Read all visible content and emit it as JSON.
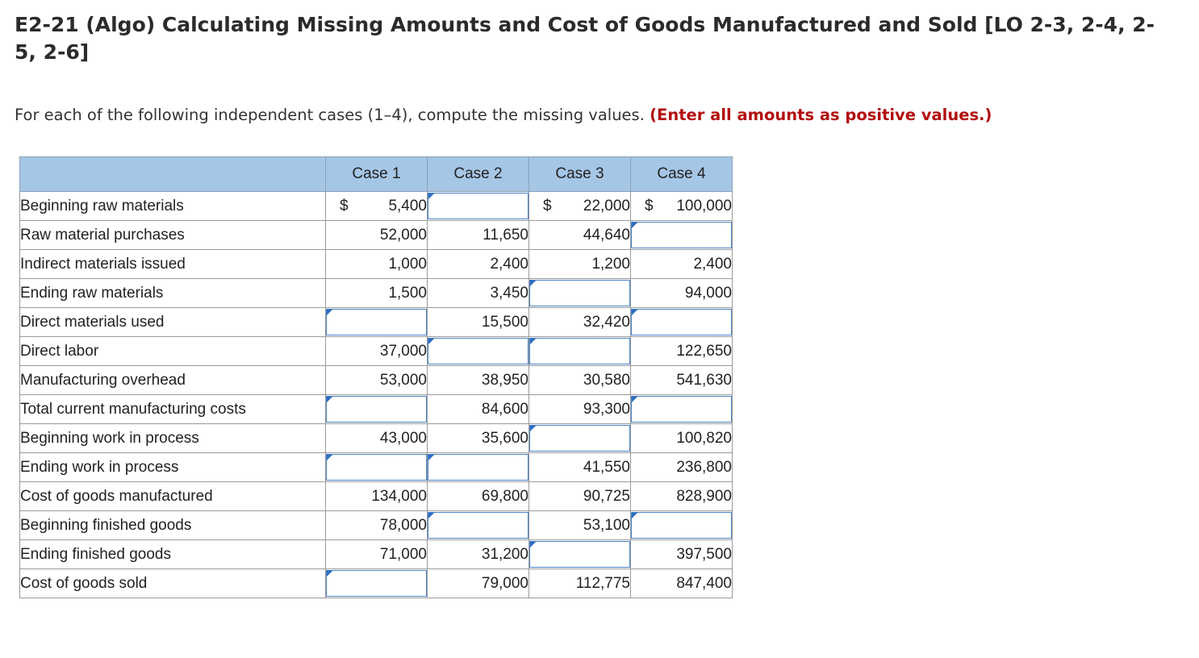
{
  "title": "E2-21 (Algo) Calculating Missing Amounts and Cost of Goods Manufactured and Sold [LO 2-3, 2-4, 2-5, 2-6]",
  "instructions": {
    "text": "For each of the following independent cases (1–4), compute the missing values.",
    "note": "(Enter all amounts as positive values.)"
  },
  "table": {
    "columns": [
      "Case 1",
      "Case 2",
      "Case 3",
      "Case 4"
    ],
    "rows": [
      {
        "label": "Beginning raw materials",
        "cells": [
          {
            "value": "5,400",
            "dollar": "$"
          },
          {
            "input": true,
            "value": ""
          },
          {
            "value": "22,000",
            "dollar": "$"
          },
          {
            "value": "100,000",
            "dollar": "$"
          }
        ]
      },
      {
        "label": "Raw material purchases",
        "cells": [
          {
            "value": "52,000"
          },
          {
            "value": "11,650"
          },
          {
            "value": "44,640"
          },
          {
            "input": true,
            "value": ""
          }
        ]
      },
      {
        "label": "Indirect materials issued",
        "cells": [
          {
            "value": "1,000"
          },
          {
            "value": "2,400"
          },
          {
            "value": "1,200"
          },
          {
            "value": "2,400"
          }
        ]
      },
      {
        "label": "Ending raw materials",
        "cells": [
          {
            "value": "1,500"
          },
          {
            "value": "3,450"
          },
          {
            "input": true,
            "value": ""
          },
          {
            "value": "94,000"
          }
        ]
      },
      {
        "label": "Direct materials used",
        "cells": [
          {
            "input": true,
            "value": ""
          },
          {
            "value": "15,500"
          },
          {
            "value": "32,420"
          },
          {
            "input": true,
            "value": ""
          }
        ]
      },
      {
        "label": "Direct labor",
        "cells": [
          {
            "value": "37,000"
          },
          {
            "input": true,
            "value": ""
          },
          {
            "input": true,
            "value": ""
          },
          {
            "value": "122,650"
          }
        ]
      },
      {
        "label": "Manufacturing overhead",
        "cells": [
          {
            "value": "53,000"
          },
          {
            "value": "38,950"
          },
          {
            "value": "30,580"
          },
          {
            "value": "541,630"
          }
        ]
      },
      {
        "label": "Total current manufacturing costs",
        "cells": [
          {
            "input": true,
            "value": ""
          },
          {
            "value": "84,600"
          },
          {
            "value": "93,300"
          },
          {
            "input": true,
            "value": ""
          }
        ]
      },
      {
        "label": "Beginning work in process",
        "cells": [
          {
            "value": "43,000"
          },
          {
            "value": "35,600"
          },
          {
            "input": true,
            "value": ""
          },
          {
            "value": "100,820"
          }
        ]
      },
      {
        "label": "Ending work in process",
        "cells": [
          {
            "input": true,
            "value": ""
          },
          {
            "input": true,
            "value": ""
          },
          {
            "value": "41,550"
          },
          {
            "value": "236,800"
          }
        ]
      },
      {
        "label": "Cost of goods manufactured",
        "cells": [
          {
            "value": "134,000"
          },
          {
            "value": "69,800"
          },
          {
            "value": "90,725"
          },
          {
            "value": "828,900"
          }
        ]
      },
      {
        "label": "Beginning finished goods",
        "cells": [
          {
            "value": "78,000"
          },
          {
            "input": true,
            "value": ""
          },
          {
            "value": "53,100"
          },
          {
            "input": true,
            "value": ""
          }
        ]
      },
      {
        "label": "Ending finished goods",
        "cells": [
          {
            "value": "71,000"
          },
          {
            "value": "31,200"
          },
          {
            "input": true,
            "value": ""
          },
          {
            "value": "397,500"
          }
        ]
      },
      {
        "label": "Cost of goods sold",
        "cells": [
          {
            "input": true,
            "value": ""
          },
          {
            "value": "79,000"
          },
          {
            "value": "112,775"
          },
          {
            "value": "847,400"
          }
        ]
      }
    ]
  }
}
